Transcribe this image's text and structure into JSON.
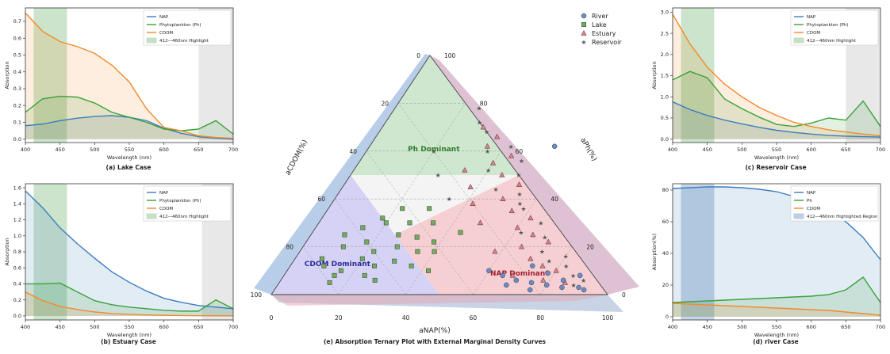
{
  "colors": {
    "nap": "#3b7dbf",
    "ph": "#3aa23a",
    "cdom": "#f28a2a",
    "highlight": "#8fc28f",
    "gray": "#d9d9d9",
    "river": "#6b8cc9",
    "lake": "#6fae5a",
    "estuary": "#e67b8b",
    "reservoir": "#8a8a8a"
  },
  "chart_data": [
    {
      "id": "lake",
      "type": "line",
      "caption": "(a) Lake Case",
      "xlabel": "Wavelength (nm)",
      "ylabel": "Absorption",
      "xlim": [
        400,
        700
      ],
      "ylim": [
        -0.02,
        0.78
      ],
      "xticks": [
        400,
        450,
        500,
        550,
        600,
        650,
        700
      ],
      "xticklabels": [
        "400",
        "450",
        "500",
        "550",
        "600",
        "650",
        "700"
      ],
      "yticks": [
        0.0,
        0.1,
        0.2,
        0.3,
        0.4,
        0.5,
        0.6,
        0.7
      ],
      "yticklabels": [
        "0.0",
        "0.1",
        "0.2",
        "0.3",
        "0.4",
        "0.5",
        "0.6",
        "0.7"
      ],
      "highlight": [
        412,
        460
      ],
      "gray": [
        650,
        700
      ],
      "legend": [
        "NAP",
        "Phytoplankton (Ph)",
        "CDOM",
        "412—460nm Highlight"
      ],
      "x": [
        400,
        425,
        450,
        475,
        500,
        525,
        550,
        575,
        600,
        625,
        650,
        675,
        700
      ],
      "series": [
        {
          "name": "NAP",
          "key": "nap",
          "values": [
            0.08,
            0.09,
            0.11,
            0.125,
            0.135,
            0.14,
            0.13,
            0.11,
            0.065,
            0.035,
            0.015,
            0.005,
            0.0
          ]
        },
        {
          "name": "Phytoplankton (Ph)",
          "key": "ph",
          "values": [
            0.16,
            0.24,
            0.255,
            0.25,
            0.215,
            0.16,
            0.13,
            0.1,
            0.06,
            0.05,
            0.06,
            0.11,
            0.03
          ]
        },
        {
          "name": "CDOM",
          "key": "cdom",
          "values": [
            0.75,
            0.64,
            0.58,
            0.55,
            0.51,
            0.44,
            0.34,
            0.18,
            0.07,
            0.05,
            0.02,
            0.01,
            0.005
          ]
        }
      ]
    },
    {
      "id": "estuary",
      "type": "line",
      "caption": "(b) Estuary Case",
      "xlabel": "Wavelength (nm)",
      "ylabel": "Absorption",
      "xlim": [
        400,
        700
      ],
      "ylim": [
        -0.05,
        1.65
      ],
      "xticks": [
        400,
        450,
        500,
        550,
        600,
        650,
        700
      ],
      "xticklabels": [
        "400",
        "450",
        "500",
        "550",
        "600",
        "650",
        "700"
      ],
      "yticks": [
        0.0,
        0.2,
        0.4,
        0.6,
        0.8,
        1.0,
        1.2,
        1.4,
        1.6
      ],
      "yticklabels": [
        "0.0",
        "0.2",
        "0.4",
        "0.6",
        "0.8",
        "1.0",
        "1.2",
        "1.4",
        "1.6"
      ],
      "highlight": [
        412,
        460
      ],
      "gray": [
        655,
        700
      ],
      "legend": [
        "NAP",
        "Phytoplankton (Ph)",
        "CDOM",
        "412—460nm Highlight"
      ],
      "x": [
        400,
        425,
        450,
        475,
        500,
        525,
        550,
        575,
        600,
        625,
        650,
        675,
        700
      ],
      "series": [
        {
          "name": "NAP",
          "key": "nap",
          "values": [
            1.56,
            1.35,
            1.1,
            0.9,
            0.72,
            0.55,
            0.42,
            0.31,
            0.22,
            0.17,
            0.13,
            0.11,
            0.09
          ]
        },
        {
          "name": "Phytoplankton (Ph)",
          "key": "ph",
          "values": [
            0.4,
            0.4,
            0.41,
            0.3,
            0.19,
            0.14,
            0.11,
            0.09,
            0.07,
            0.06,
            0.06,
            0.2,
            0.09
          ]
        },
        {
          "name": "CDOM",
          "key": "cdom",
          "values": [
            0.3,
            0.19,
            0.12,
            0.08,
            0.05,
            0.03,
            0.02,
            0.012,
            0.008,
            0.005,
            0.003,
            0.002,
            0.001
          ]
        }
      ]
    },
    {
      "id": "reservoir",
      "type": "line",
      "caption": "(c) Reservoir Case",
      "xlabel": "Wavelength (nm)",
      "ylabel": "Absorption",
      "xlim": [
        400,
        700
      ],
      "ylim": [
        -0.08,
        3.1
      ],
      "xticks": [
        400,
        450,
        500,
        550,
        600,
        650,
        700
      ],
      "xticklabels": [
        "400",
        "450",
        "500",
        "550",
        "600",
        "650",
        "700"
      ],
      "yticks": [
        0.0,
        0.5,
        1.0,
        1.5,
        2.0,
        2.5,
        3.0
      ],
      "yticklabels": [
        "0.0",
        "0.5",
        "1.0",
        "1.5",
        "2.0",
        "2.5",
        "3.0"
      ],
      "highlight": [
        412,
        460
      ],
      "gray": [
        650,
        700
      ],
      "legend": [
        "NAP",
        "Phytoplankton (Ph)",
        "CDOM",
        "412—460nm Highlight"
      ],
      "x": [
        400,
        425,
        450,
        475,
        500,
        525,
        550,
        575,
        600,
        625,
        650,
        675,
        700
      ],
      "series": [
        {
          "name": "NAP",
          "key": "nap",
          "values": [
            0.88,
            0.7,
            0.56,
            0.45,
            0.36,
            0.28,
            0.21,
            0.16,
            0.12,
            0.09,
            0.07,
            0.06,
            0.05
          ]
        },
        {
          "name": "Phytoplankton (Ph)",
          "key": "ph",
          "values": [
            1.4,
            1.6,
            1.45,
            0.95,
            0.72,
            0.52,
            0.35,
            0.3,
            0.38,
            0.5,
            0.45,
            0.9,
            0.3
          ]
        },
        {
          "name": "CDOM",
          "key": "cdom",
          "values": [
            2.95,
            2.25,
            1.7,
            1.3,
            1.0,
            0.75,
            0.56,
            0.4,
            0.3,
            0.22,
            0.17,
            0.12,
            0.08
          ]
        }
      ]
    },
    {
      "id": "river",
      "type": "line",
      "caption": "(d) river Case",
      "xlabel": "Wavelength (nm)",
      "ylabel": "Absorption(%)",
      "xlim": [
        400,
        700
      ],
      "ylim": [
        -2,
        84
      ],
      "xticks": [
        400,
        450,
        500,
        550,
        600,
        650,
        700
      ],
      "xticklabels": [
        "400",
        "450",
        "500",
        "550",
        "600",
        "650",
        "700"
      ],
      "yticks": [
        0,
        20,
        40,
        60,
        80
      ],
      "yticklabels": [
        "0",
        "20",
        "40",
        "60",
        "80"
      ],
      "highlight": [
        412,
        460
      ],
      "highlightColor": "blue",
      "legend": [
        "NAP",
        "Ph",
        "CDOM",
        "412—460nm Highlighted Region"
      ],
      "x": [
        400,
        425,
        450,
        475,
        500,
        525,
        550,
        575,
        600,
        625,
        650,
        675,
        700
      ],
      "series": [
        {
          "name": "NAP",
          "key": "nap",
          "values": [
            81,
            81.5,
            82,
            82,
            81.5,
            80.5,
            79,
            76,
            72,
            66,
            60,
            50,
            36
          ]
        },
        {
          "name": "Ph",
          "key": "ph",
          "values": [
            9,
            9.5,
            10,
            10.5,
            11,
            11.5,
            12,
            12.5,
            13,
            14,
            17,
            25,
            9
          ]
        },
        {
          "name": "CDOM",
          "key": "cdom",
          "values": [
            8.5,
            8,
            7.5,
            7,
            6.5,
            6,
            5.5,
            5,
            4.5,
            4,
            3,
            2,
            1
          ]
        }
      ]
    },
    {
      "id": "ternary",
      "type": "scatter",
      "caption": "(e) Absorption Ternary Plot with External Marginal Density Curves",
      "axes": [
        "aNAP(%)",
        "aPh(%)",
        "aCDOM(%)"
      ],
      "ticks": [
        0,
        20,
        40,
        60,
        80,
        100
      ],
      "regions": [
        "Ph Dominant",
        "CDOM Dominant",
        "NAP Dominant"
      ],
      "legend": [
        "River",
        "Lake",
        "Estuary",
        "Reservoir"
      ],
      "points": {
        "Lake": [
          [
            10,
            12
          ],
          [
            15,
            8
          ],
          [
            20,
            15
          ],
          [
            25,
            12
          ],
          [
            12,
            20
          ],
          [
            18,
            22
          ],
          [
            22,
            18
          ],
          [
            28,
            20
          ],
          [
            30,
            14
          ],
          [
            35,
            18
          ],
          [
            8,
            15
          ],
          [
            14,
            28
          ],
          [
            20,
            30
          ],
          [
            26,
            25
          ],
          [
            32,
            24
          ],
          [
            38,
            22
          ],
          [
            16,
            10
          ],
          [
            24,
            8
          ],
          [
            36,
            12
          ],
          [
            40,
            18
          ],
          [
            10,
            25
          ],
          [
            18,
            32
          ],
          [
            27,
            30
          ],
          [
            34,
            30
          ],
          [
            22,
            36
          ],
          [
            30,
            36
          ],
          [
            15,
            5
          ],
          [
            28,
            6
          ],
          [
            42,
            10
          ],
          [
            44,
            26
          ]
        ],
        "Estuary": [
          [
            30,
            70
          ],
          [
            35,
            62
          ],
          [
            40,
            55
          ],
          [
            45,
            50
          ],
          [
            38,
            45
          ],
          [
            50,
            40
          ],
          [
            55,
            35
          ],
          [
            48,
            30
          ],
          [
            60,
            28
          ],
          [
            65,
            20
          ],
          [
            58,
            18
          ],
          [
            70,
            15
          ],
          [
            75,
            12
          ],
          [
            80,
            10
          ],
          [
            68,
            8
          ],
          [
            42,
            38
          ],
          [
            33,
            52
          ],
          [
            36,
            66
          ],
          [
            44,
            58
          ],
          [
            52,
            46
          ],
          [
            62,
            32
          ],
          [
            72,
            22
          ],
          [
            78,
            6
          ],
          [
            85,
            5
          ],
          [
            66,
            25
          ]
        ],
        "Reservoir": [
          [
            25,
            78
          ],
          [
            28,
            72
          ],
          [
            32,
            68
          ],
          [
            36,
            60
          ],
          [
            40,
            52
          ],
          [
            46,
            44
          ],
          [
            50,
            50
          ],
          [
            54,
            42
          ],
          [
            58,
            36
          ],
          [
            62,
            26
          ],
          [
            66,
            30
          ],
          [
            72,
            18
          ],
          [
            76,
            14
          ],
          [
            82,
            12
          ],
          [
            86,
            8
          ],
          [
            90,
            6
          ],
          [
            42,
            62
          ],
          [
            48,
            56
          ],
          [
            56,
            38
          ],
          [
            70,
            24
          ],
          [
            80,
            16
          ],
          [
            88,
            4
          ],
          [
            20,
            60
          ],
          [
            26,
            50
          ],
          [
            34,
            40
          ]
        ],
        "River": [
          [
            60,
            10
          ],
          [
            65,
            8
          ],
          [
            70,
            6
          ],
          [
            75,
            5
          ],
          [
            80,
            4
          ],
          [
            85,
            3
          ],
          [
            90,
            3
          ],
          [
            72,
            12
          ],
          [
            78,
            9
          ],
          [
            84,
            6
          ],
          [
            92,
            2
          ],
          [
            68,
            4
          ],
          [
            55,
            62
          ],
          [
            76,
            2
          ],
          [
            88,
            8
          ]
        ]
      }
    }
  ]
}
